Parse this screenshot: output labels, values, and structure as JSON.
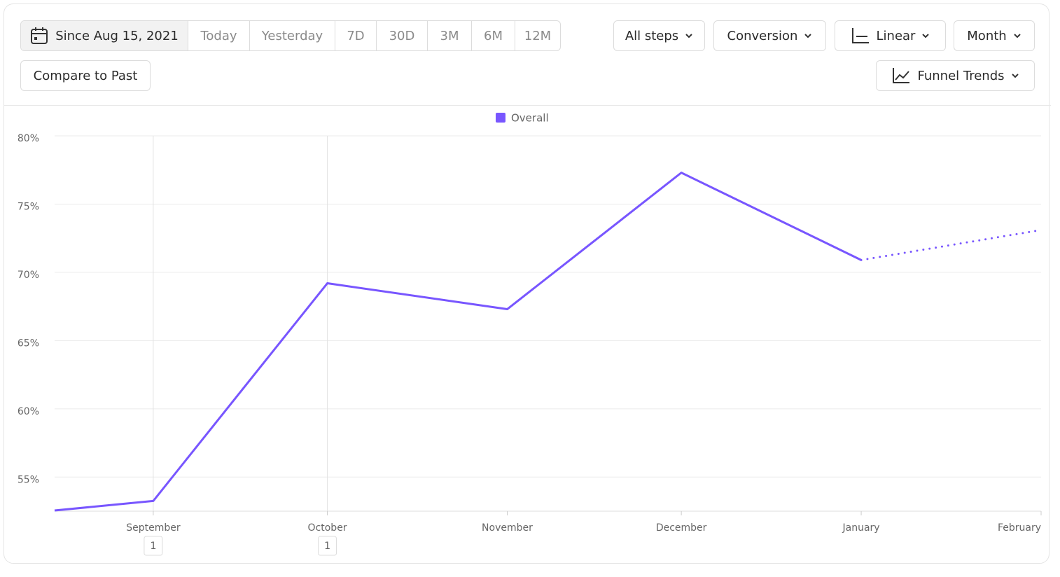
{
  "toolbar": {
    "date_range": "Since Aug 15, 2021",
    "presets": [
      "Today",
      "Yesterday",
      "7D",
      "30D",
      "3M",
      "6M",
      "12M"
    ],
    "compare": "Compare to Past",
    "steps": "All steps",
    "metric": "Conversion",
    "scale": "Linear",
    "interval": "Month",
    "view": "Funnel Trends"
  },
  "chart_data": {
    "type": "line",
    "x": [
      0,
      17,
      47,
      78,
      108,
      139,
      170
    ],
    "xlim": [
      0,
      170
    ],
    "xticks": [
      {
        "value": 17,
        "label": "September"
      },
      {
        "value": 47,
        "label": "October"
      },
      {
        "value": 78,
        "label": "November"
      },
      {
        "value": 108,
        "label": "December"
      },
      {
        "value": 139,
        "label": "January"
      },
      {
        "value": 170,
        "label": "February"
      }
    ],
    "series": [
      {
        "name": "Overall",
        "color": "#7856ff",
        "values": [
          52.55,
          53.25,
          69.2,
          67.3,
          77.3,
          70.9,
          73.1
        ],
        "dotted_from": 5
      }
    ],
    "ylim": [
      52.5,
      80
    ],
    "yticks": [
      {
        "value": 55,
        "label": "55%"
      },
      {
        "value": 60,
        "label": "60%"
      },
      {
        "value": 65,
        "label": "65%"
      },
      {
        "value": 70,
        "label": "70%"
      },
      {
        "value": 75,
        "label": "75%"
      },
      {
        "value": 80,
        "label": "80%"
      }
    ],
    "grid": true,
    "legend": "top",
    "annotations": [
      {
        "x": 17,
        "label": "1"
      },
      {
        "x": 47,
        "label": "1"
      }
    ]
  }
}
